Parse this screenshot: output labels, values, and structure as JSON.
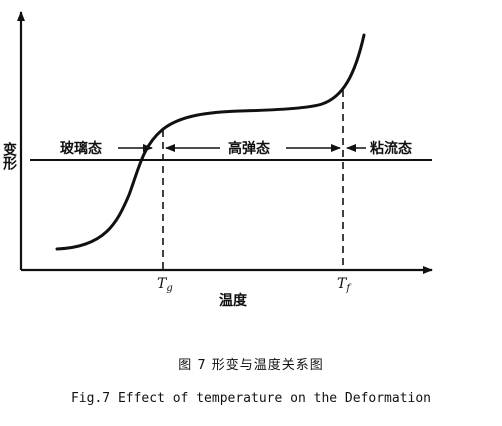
{
  "diagram": {
    "y_axis_label": "变形",
    "x_axis_label": "温度",
    "regions": {
      "glassy": "玻璃态",
      "rubbery": "高弹态",
      "viscous": "粘流态"
    },
    "temperature_marks": {
      "glass_transition": "T",
      "glass_transition_sub": "g",
      "flow": "T",
      "flow_sub": "f"
    }
  },
  "caption": {
    "chinese": "图 7 形变与温度关系图",
    "english": "Fig.7 Effect of temperature on the Deformation"
  }
}
